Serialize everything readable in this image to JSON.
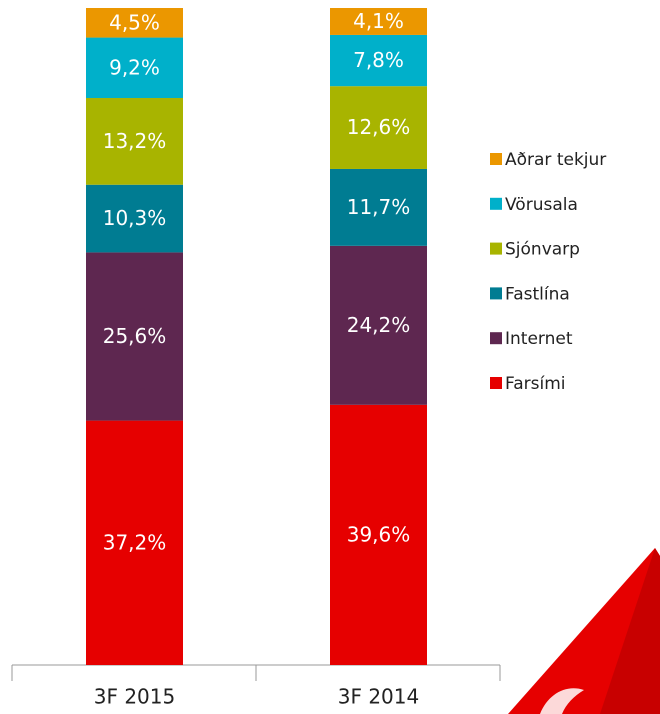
{
  "chart_data": {
    "type": "stacked_bar",
    "categories": [
      "3F 2015",
      "3F 2014"
    ],
    "series": [
      {
        "name": "Farsími",
        "color": "#e60000",
        "values": [
          37.2,
          39.6
        ],
        "value_labels": [
          "37,2%",
          "39,6%"
        ]
      },
      {
        "name": "Internet",
        "color": "#5e2750",
        "values": [
          25.6,
          24.2
        ],
        "value_labels": [
          "25,6%",
          "24,2%"
        ]
      },
      {
        "name": "Fastlína",
        "color": "#007c92",
        "values": [
          10.3,
          11.7
        ],
        "value_labels": [
          "10,3%",
          "11,7%"
        ]
      },
      {
        "name": "Sjónvarp",
        "color": "#a8b400",
        "values": [
          13.2,
          12.6
        ],
        "value_labels": [
          "13,2%",
          "12,6%"
        ]
      },
      {
        "name": "Vörusala",
        "color": "#00b0ca",
        "values": [
          9.2,
          7.8
        ],
        "value_labels": [
          "9,2%",
          "7,8%"
        ]
      },
      {
        "name": "Aðrar tekjur",
        "color": "#eb9700",
        "values": [
          4.5,
          4.1
        ],
        "value_labels": [
          "4,5%",
          "4,1%"
        ]
      }
    ],
    "ylim": [
      0,
      100
    ],
    "legend": "right"
  }
}
